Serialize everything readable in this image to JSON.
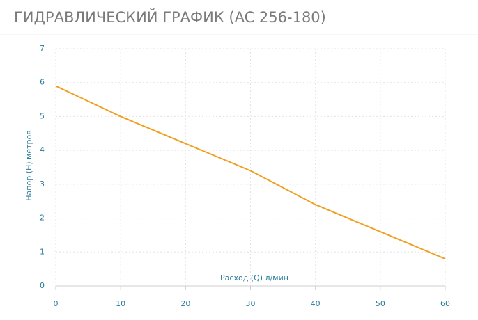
{
  "chart_data": {
    "type": "line",
    "title": "ГИДРАВЛИЧЕСКИЙ ГРАФИК (AC 256-180)",
    "x_label": "Расход (Q) л/мин",
    "y_label": "Напор (H) метров",
    "x": [
      0,
      5,
      10,
      15,
      20,
      25,
      30,
      35,
      40,
      45,
      50,
      55,
      60
    ],
    "series": [
      {
        "name": "AC 256-180",
        "color": "#f0a020",
        "values": [
          5.9,
          5.45,
          5.0,
          4.6,
          4.2,
          3.8,
          3.4,
          2.9,
          2.4,
          2.0,
          1.6,
          1.2,
          0.8
        ]
      }
    ],
    "xlim": [
      0,
      60
    ],
    "xticks": [
      0,
      10,
      20,
      30,
      40,
      50,
      60
    ],
    "ylim": [
      0,
      7
    ],
    "yticks": [
      0,
      1,
      2,
      3,
      4,
      5,
      6,
      7
    ],
    "grid": true
  }
}
